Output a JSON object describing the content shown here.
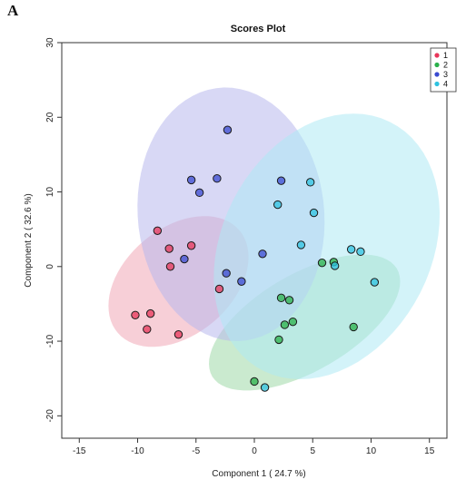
{
  "panel_label": "A",
  "chart_data": {
    "type": "scatter",
    "title": "Scores Plot",
    "xlabel": "Component 1 ( 24.7 %)",
    "ylabel": "Component 2 ( 32.6 %)",
    "xlim": [
      -16.5,
      16.5
    ],
    "ylim": [
      -23,
      30
    ],
    "xticks": [
      -15,
      -10,
      -5,
      0,
      5,
      10,
      15
    ],
    "yticks": [
      -20,
      -10,
      0,
      10,
      20,
      30
    ],
    "grid": false,
    "legend_position": "top-right",
    "series": [
      {
        "name": "1",
        "color": "#e8365a",
        "fill": "#f0a7b7",
        "points": [
          [
            -10.2,
            -6.5
          ],
          [
            -8.9,
            -6.3
          ],
          [
            -9.2,
            -8.4
          ],
          [
            -6.5,
            -9.1
          ],
          [
            -8.3,
            4.8
          ],
          [
            -7.3,
            2.4
          ],
          [
            -5.4,
            2.8
          ],
          [
            -7.2,
            0.0
          ],
          [
            -3.0,
            -3.0
          ]
        ],
        "ellipse": {
          "cx": -6.5,
          "cy": -2.0,
          "rx": 9.2,
          "ry": 5.3,
          "angle_deg": 68
        }
      },
      {
        "name": "2",
        "color": "#2ab04a",
        "fill": "#9fd9a8",
        "points": [
          [
            2.3,
            -4.2
          ],
          [
            3.0,
            -4.5
          ],
          [
            2.6,
            -7.8
          ],
          [
            3.3,
            -7.4
          ],
          [
            2.1,
            -9.8
          ],
          [
            0.0,
            -15.4
          ],
          [
            5.8,
            0.5
          ],
          [
            6.8,
            0.6
          ],
          [
            8.5,
            -8.1
          ]
        ],
        "ellipse": {
          "cx": 4.3,
          "cy": -7.5,
          "rx": 11.0,
          "ry": 5.4,
          "angle_deg": 50
        }
      },
      {
        "name": "3",
        "color": "#3a4ad0",
        "fill": "#b8b8ec",
        "points": [
          [
            -2.3,
            18.3
          ],
          [
            -5.4,
            11.6
          ],
          [
            -3.2,
            11.8
          ],
          [
            -4.7,
            9.9
          ],
          [
            2.3,
            11.5
          ],
          [
            0.7,
            1.7
          ],
          [
            -6.0,
            1.0
          ],
          [
            -2.4,
            -0.9
          ],
          [
            -1.1,
            -2.0
          ]
        ],
        "ellipse": {
          "cx": -2.0,
          "cy": 7.0,
          "rx": 17.0,
          "ry": 8.0,
          "angle_deg": 92
        }
      },
      {
        "name": "4",
        "color": "#2ec2e0",
        "fill": "#aeeaf4",
        "points": [
          [
            4.8,
            11.3
          ],
          [
            2.0,
            8.3
          ],
          [
            5.1,
            7.2
          ],
          [
            4.0,
            2.9
          ],
          [
            8.3,
            2.3
          ],
          [
            9.1,
            2.0
          ],
          [
            6.9,
            0.1
          ],
          [
            10.3,
            -2.1
          ],
          [
            0.9,
            -16.2
          ]
        ],
        "ellipse": {
          "cx": 6.2,
          "cy": 2.7,
          "rx": 18.0,
          "ry": 9.3,
          "angle_deg": 80
        }
      }
    ]
  }
}
